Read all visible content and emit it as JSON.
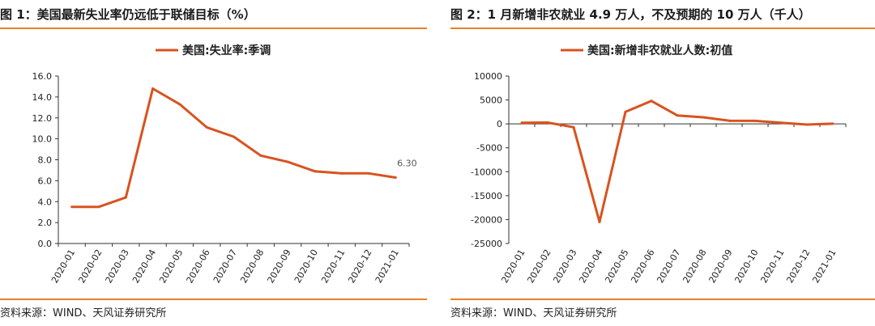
{
  "colors": {
    "series": "#d8531f",
    "rule": "#e8802a",
    "axis": "#333333"
  },
  "source_text": "资料来源：WIND、天风证券研究所",
  "chart_data": [
    {
      "type": "line",
      "figure_title": "图 1：美国最新失业率仍远低于联储目标（%）",
      "title": "",
      "xlabel": "",
      "ylabel": "",
      "legend_position": "top",
      "grid": false,
      "x": [
        "2020-01",
        "2020-02",
        "2020-03",
        "2020-04",
        "2020-05",
        "2020-06",
        "2020-07",
        "2020-08",
        "2020-09",
        "2020-10",
        "2020-11",
        "2020-12",
        "2021-01"
      ],
      "series": [
        {
          "name": "美国:失业率:季调",
          "values": [
            3.5,
            3.5,
            4.4,
            14.8,
            13.3,
            11.1,
            10.2,
            8.4,
            7.8,
            6.9,
            6.7,
            6.7,
            6.3
          ]
        }
      ],
      "ylim": [
        0,
        16
      ],
      "yticks": [
        "0.0",
        "2.0",
        "4.0",
        "6.0",
        "8.0",
        "10.0",
        "12.0",
        "14.0",
        "16.0"
      ],
      "annotations": [
        {
          "x": "2021-01",
          "text": "6.30"
        }
      ]
    },
    {
      "type": "line",
      "figure_title": "图 2：1 月新增非农就业 4.9 万人，不及预期的 10 万人（千人）",
      "title": "",
      "xlabel": "",
      "ylabel": "",
      "legend_position": "top",
      "grid": false,
      "x": [
        "2020-01",
        "2020-02",
        "2020-03",
        "2020-04",
        "2020-05",
        "2020-06",
        "2020-07",
        "2020-08",
        "2020-09",
        "2020-10",
        "2020-11",
        "2020-12",
        "2021-01"
      ],
      "series": [
        {
          "name": "美国:新增非农就业人数:初值",
          "values": [
            225,
            273,
            -701,
            -20500,
            2509,
            4800,
            1763,
            1371,
            661,
            638,
            245,
            -140,
            49
          ]
        }
      ],
      "ylim": [
        -25000,
        10000
      ],
      "yticks": [
        "-25000",
        "-20000",
        "-15000",
        "-10000",
        "-5000",
        "0",
        "5000",
        "10000"
      ]
    }
  ]
}
